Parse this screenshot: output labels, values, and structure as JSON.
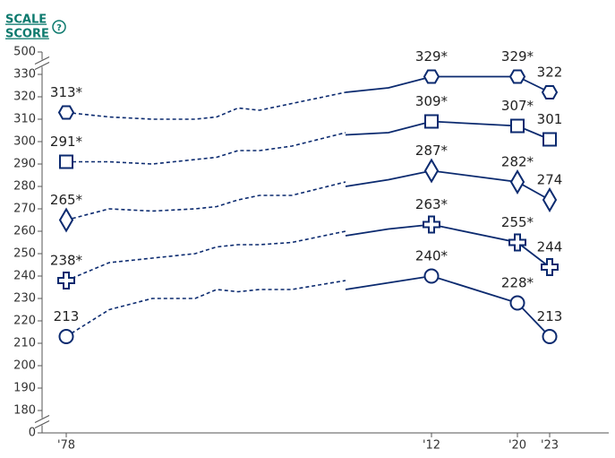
{
  "chart_data": {
    "type": "line",
    "y_label_lines": [
      "SCALE",
      "SCORE"
    ],
    "help_icon": "?",
    "ylim": [
      0,
      500
    ],
    "yticks": [
      0,
      180,
      190,
      200,
      210,
      220,
      230,
      240,
      250,
      260,
      270,
      280,
      290,
      300,
      310,
      320,
      330,
      500
    ],
    "axis_break": true,
    "xlim": [
      1976,
      2027
    ],
    "xticks": [
      {
        "value": 1978,
        "label": "'78"
      },
      {
        "value": 2012,
        "label": "'12"
      },
      {
        "value": 2020,
        "label": "'20"
      },
      {
        "value": 2023,
        "label": "'23"
      }
    ],
    "series": [
      {
        "marker": "hexagon",
        "color": "#0b2a6f",
        "dashed": true,
        "x": [
          1978,
          1982,
          1986,
          1990,
          1992,
          1994,
          1996,
          1999,
          2004
        ],
        "values": [
          313,
          311,
          310,
          310,
          311,
          315,
          314,
          317,
          322
        ],
        "value_labels": [
          "313*",
          null,
          null,
          null,
          null,
          null,
          null,
          null,
          null
        ]
      },
      {
        "marker": "hexagon",
        "color": "#0b2a6f",
        "dashed": false,
        "x": [
          2004,
          2008,
          2012,
          2020,
          2023
        ],
        "values": [
          322,
          324,
          329,
          329,
          322
        ],
        "value_labels": [
          null,
          null,
          "329*",
          "329*",
          "322"
        ]
      },
      {
        "marker": "square",
        "color": "#0b2a6f",
        "dashed": true,
        "x": [
          1978,
          1982,
          1986,
          1990,
          1992,
          1994,
          1996,
          1999,
          2004
        ],
        "values": [
          291,
          291,
          290,
          292,
          293,
          296,
          296,
          298,
          304
        ],
        "value_labels": [
          "291*",
          null,
          null,
          null,
          null,
          null,
          null,
          null,
          null
        ]
      },
      {
        "marker": "square",
        "color": "#0b2a6f",
        "dashed": false,
        "x": [
          2004,
          2008,
          2012,
          2020,
          2023
        ],
        "values": [
          303,
          304,
          309,
          307,
          301
        ],
        "value_labels": [
          null,
          null,
          "309*",
          "307*",
          "301"
        ]
      },
      {
        "marker": "diamond",
        "color": "#0b2a6f",
        "dashed": true,
        "x": [
          1978,
          1982,
          1986,
          1990,
          1992,
          1994,
          1996,
          1999,
          2004
        ],
        "values": [
          265,
          270,
          269,
          270,
          271,
          274,
          276,
          276,
          282
        ],
        "value_labels": [
          "265*",
          null,
          null,
          null,
          null,
          null,
          null,
          null,
          null
        ]
      },
      {
        "marker": "diamond",
        "color": "#0b2a6f",
        "dashed": false,
        "x": [
          2004,
          2008,
          2012,
          2020,
          2023
        ],
        "values": [
          280,
          283,
          287,
          282,
          274
        ],
        "value_labels": [
          null,
          null,
          "287*",
          "282*",
          "274"
        ]
      },
      {
        "marker": "plus",
        "color": "#0b2a6f",
        "dashed": true,
        "x": [
          1978,
          1982,
          1986,
          1990,
          1992,
          1994,
          1996,
          1999,
          2004
        ],
        "values": [
          238,
          246,
          248,
          250,
          253,
          254,
          254,
          255,
          260
        ],
        "value_labels": [
          "238*",
          null,
          null,
          null,
          null,
          null,
          null,
          null,
          null
        ]
      },
      {
        "marker": "plus",
        "color": "#0b2a6f",
        "dashed": false,
        "x": [
          2004,
          2008,
          2012,
          2020,
          2023
        ],
        "values": [
          258,
          261,
          263,
          255,
          244
        ],
        "value_labels": [
          null,
          null,
          "263*",
          "255*",
          "244"
        ]
      },
      {
        "marker": "circle",
        "color": "#0b2a6f",
        "dashed": true,
        "x": [
          1978,
          1982,
          1986,
          1990,
          1992,
          1994,
          1996,
          1999,
          2004
        ],
        "values": [
          213,
          225,
          230,
          230,
          234,
          233,
          234,
          234,
          238
        ],
        "value_labels": [
          "213",
          null,
          null,
          null,
          null,
          null,
          null,
          null,
          null
        ]
      },
      {
        "marker": "circle",
        "color": "#0b2a6f",
        "dashed": false,
        "x": [
          2004,
          2008,
          2012,
          2020,
          2023
        ],
        "values": [
          234,
          237,
          240,
          228,
          213
        ],
        "value_labels": [
          null,
          null,
          "240*",
          "228*",
          "213"
        ]
      }
    ]
  }
}
